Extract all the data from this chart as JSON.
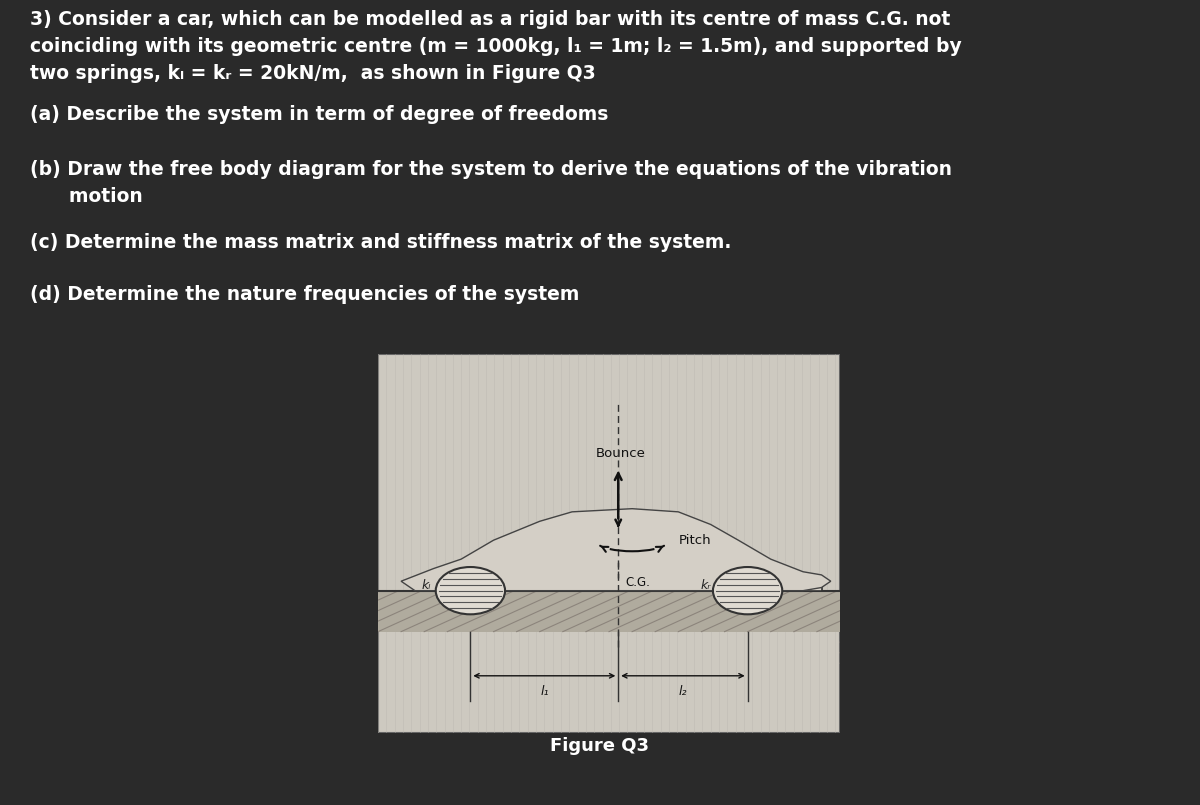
{
  "bg_color": "#2a2a2a",
  "text_color": "#ffffff",
  "title_line1": "3) Consider a car, which can be modelled as a rigid bar with its centre of mass C.G. not",
  "title_line2": "coinciding with its geometric centre (m = 1000kg, l₁ = 1m; l₂ = 1.5m), and supported by",
  "title_line3": "two springs, kₗ = kᵣ = 20kN/m,  as shown in Figure Q3",
  "part_a": "(a) Describe the system in term of degree of freedoms",
  "part_b_line1": "(b) Draw the free body diagram for the system to derive the equations of the vibration",
  "part_b_line2": "      motion",
  "part_c": "(c) Determine the mass matrix and stiffness matrix of the system.",
  "part_d": "(d) Determine the nature frequencies of the system",
  "fig_label": "Figure Q3",
  "fig_bounce": "Bounce",
  "fig_pitch": "Pitch",
  "fig_cg": "C.G.",
  "fig_kl": "kₗ",
  "fig_kr": "kᵣ",
  "fig_l1": "l₁",
  "fig_l2": "l₂",
  "font_size_title": 13.5,
  "font_size_parts": 13.5,
  "font_size_fig_label": 13
}
